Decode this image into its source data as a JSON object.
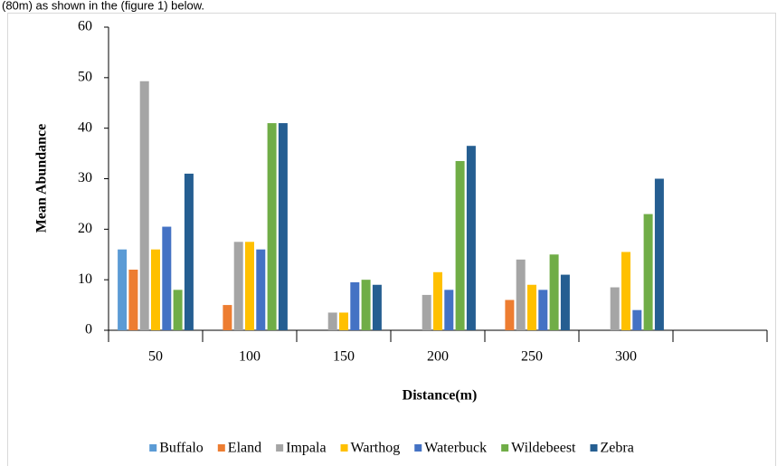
{
  "header_text": "(80m) as shown in the (figure 1) below.",
  "chart_data": {
    "type": "bar",
    "x_label": "Distance(m)",
    "y_label": "Mean Abundance",
    "categories": [
      "50",
      "100",
      "150",
      "200",
      "250",
      "300",
      null
    ],
    "series": [
      {
        "name": "Buffalo",
        "color": "#5b9bd5",
        "values": [
          16,
          0,
          0,
          0,
          0,
          0,
          null
        ]
      },
      {
        "name": "Eland",
        "color": "#ed7d31",
        "values": [
          12,
          5,
          0,
          0,
          6,
          0,
          null
        ]
      },
      {
        "name": "Impala",
        "color": "#a5a5a5",
        "values": [
          49.3,
          17.5,
          3.5,
          7,
          14,
          8.5,
          null
        ]
      },
      {
        "name": "Warthog",
        "color": "#ffc000",
        "values": [
          16,
          17.5,
          3.5,
          11.5,
          9,
          15.5,
          null
        ]
      },
      {
        "name": "Waterbuck",
        "color": "#4472c4",
        "values": [
          20.5,
          16,
          9.5,
          8,
          8,
          4,
          null
        ]
      },
      {
        "name": "Wildebeest",
        "color": "#70ad47",
        "values": [
          8,
          41,
          10,
          33.5,
          15,
          23,
          null
        ]
      },
      {
        "name": "Zebra",
        "color": "#255e91",
        "values": [
          31,
          41,
          9,
          36.5,
          11,
          30,
          null
        ]
      }
    ],
    "ylim": [
      0,
      60
    ],
    "yticks": [
      0,
      10,
      20,
      30,
      40,
      50,
      60
    ],
    "grid": false,
    "legend": "bottom"
  }
}
